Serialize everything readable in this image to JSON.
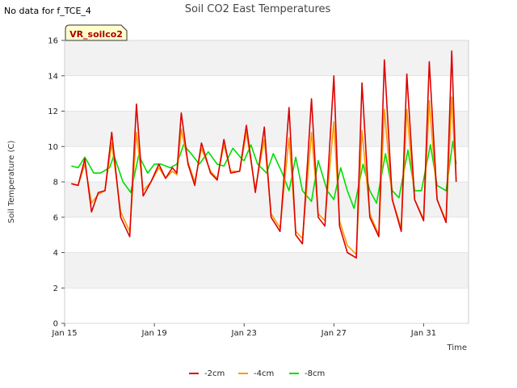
{
  "header": {
    "no_data_text": "No data for f_TCE_4"
  },
  "chart_data": {
    "type": "line",
    "title": "Soil CO2 East Temperatures",
    "xlabel": "Time",
    "ylabel": "Soil Temperature (C)",
    "badge": "VR_soilco2",
    "x_unit": "days",
    "xlim": [
      15,
      33
    ],
    "ylim": [
      0,
      16
    ],
    "yticks": [
      0,
      2,
      4,
      6,
      8,
      10,
      12,
      14,
      16
    ],
    "xticks": [
      {
        "value": 15,
        "label": "Jan 15"
      },
      {
        "value": 19,
        "label": "Jan 19"
      },
      {
        "value": 23,
        "label": "Jan 23"
      },
      {
        "value": 27,
        "label": "Jan 27"
      },
      {
        "value": 31,
        "label": "Jan 31"
      }
    ],
    "bands": [
      [
        2,
        4
      ],
      [
        6,
        8
      ],
      [
        10,
        12
      ],
      [
        14,
        16
      ]
    ],
    "legend_position": "bottom",
    "series": [
      {
        "name": "-2cm",
        "color": "#dd0000",
        "x": [
          15.3,
          15.6,
          15.9,
          16.2,
          16.5,
          16.8,
          17.1,
          17.5,
          17.9,
          18.2,
          18.5,
          18.85,
          19.2,
          19.5,
          19.8,
          20.0,
          20.2,
          20.5,
          20.8,
          21.1,
          21.5,
          21.8,
          22.1,
          22.4,
          22.8,
          23.1,
          23.5,
          23.9,
          24.2,
          24.6,
          25.0,
          25.3,
          25.6,
          26.0,
          26.3,
          26.6,
          27.0,
          27.25,
          27.6,
          28.0,
          28.25,
          28.6,
          29.0,
          29.25,
          29.6,
          30.0,
          30.25,
          30.6,
          31.0,
          31.25,
          31.6,
          32.0,
          32.25,
          32.45
        ],
        "y": [
          7.9,
          7.8,
          9.3,
          6.3,
          7.4,
          7.5,
          10.8,
          6.0,
          4.9,
          12.4,
          7.2,
          8.0,
          9.0,
          8.2,
          8.8,
          8.5,
          11.9,
          9.0,
          7.8,
          10.2,
          8.5,
          8.1,
          10.4,
          8.5,
          8.6,
          11.2,
          7.4,
          11.1,
          6.0,
          5.2,
          12.2,
          5.0,
          4.5,
          12.7,
          6.0,
          5.5,
          14.0,
          5.5,
          4.0,
          3.7,
          13.6,
          6.0,
          4.9,
          14.9,
          7.0,
          5.2,
          14.1,
          7.0,
          5.8,
          14.8,
          7.0,
          5.7,
          15.4,
          8.0
        ]
      },
      {
        "name": "-4cm",
        "color": "#ff9900",
        "x": [
          15.3,
          15.6,
          15.9,
          16.2,
          16.5,
          16.8,
          17.1,
          17.5,
          17.9,
          18.2,
          18.5,
          18.85,
          19.2,
          19.5,
          19.8,
          20.0,
          20.2,
          20.5,
          20.8,
          21.1,
          21.5,
          21.8,
          22.1,
          22.4,
          22.8,
          23.1,
          23.5,
          23.9,
          24.2,
          24.6,
          25.0,
          25.3,
          25.6,
          26.0,
          26.3,
          26.6,
          27.0,
          27.25,
          27.6,
          28.0,
          28.25,
          28.6,
          29.0,
          29.25,
          29.6,
          30.0,
          30.25,
          30.6,
          31.0,
          31.25,
          31.6,
          32.0,
          32.25,
          32.45
        ],
        "y": [
          7.9,
          7.8,
          9.0,
          6.8,
          7.3,
          7.5,
          10.2,
          6.3,
          5.2,
          10.8,
          7.5,
          8.0,
          8.8,
          8.2,
          8.6,
          8.4,
          11.0,
          9.1,
          8.0,
          9.9,
          8.6,
          8.2,
          10.1,
          8.6,
          8.6,
          10.8,
          7.6,
          10.4,
          6.2,
          5.4,
          10.5,
          5.2,
          4.8,
          10.8,
          6.2,
          5.8,
          11.4,
          5.8,
          4.4,
          3.9,
          10.9,
          6.2,
          5.0,
          12.1,
          7.0,
          5.4,
          12.1,
          7.0,
          5.9,
          12.6,
          7.0,
          5.8,
          12.8,
          8.0
        ]
      },
      {
        "name": "-8cm",
        "color": "#00dd00",
        "x": [
          15.3,
          15.6,
          15.9,
          16.3,
          16.6,
          17.0,
          17.2,
          17.6,
          17.95,
          18.3,
          18.7,
          19.0,
          19.3,
          19.7,
          20.0,
          20.3,
          20.7,
          21.0,
          21.4,
          21.8,
          22.1,
          22.5,
          22.9,
          23.0,
          23.3,
          23.6,
          24.0,
          24.3,
          24.7,
          25.0,
          25.3,
          25.6,
          26.0,
          26.3,
          26.7,
          27.0,
          27.3,
          27.6,
          27.9,
          28.3,
          28.6,
          28.9,
          29.3,
          29.6,
          29.9,
          30.3,
          30.6,
          30.9,
          31.3,
          31.6,
          32.0,
          32.3,
          32.45
        ],
        "y": [
          8.9,
          8.8,
          9.4,
          8.5,
          8.5,
          8.8,
          9.5,
          8.0,
          7.4,
          9.5,
          8.5,
          9.0,
          9.0,
          8.8,
          9.0,
          10.1,
          9.5,
          9.0,
          9.7,
          9.0,
          8.9,
          9.9,
          9.3,
          9.2,
          10.1,
          9.0,
          8.5,
          9.6,
          8.5,
          7.5,
          9.4,
          7.5,
          6.9,
          9.2,
          7.5,
          7.0,
          8.8,
          7.5,
          6.5,
          9.0,
          7.5,
          6.8,
          9.6,
          7.5,
          7.1,
          9.8,
          7.5,
          7.5,
          10.1,
          7.8,
          7.5,
          10.3,
          9.0
        ]
      }
    ]
  }
}
